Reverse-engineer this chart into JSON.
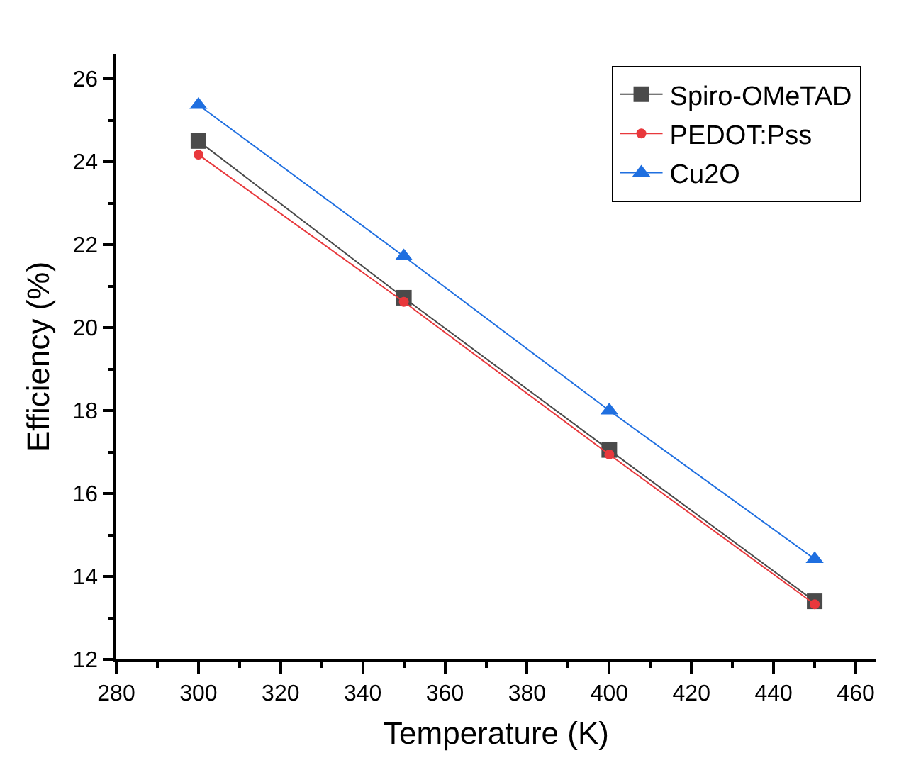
{
  "chart_data": {
    "type": "line",
    "xlabel": "Temperature (K)",
    "ylabel": "Efficiency (%)",
    "x": [
      300,
      350,
      400,
      450
    ],
    "series": [
      {
        "name": "Spiro-OMeTAD",
        "color": "#4a4a4a",
        "marker": "square",
        "values": [
          24.5,
          20.72,
          17.05,
          13.4
        ]
      },
      {
        "name": "PEDOT:Pss",
        "color": "#e8383c",
        "marker": "circle",
        "values": [
          24.17,
          20.62,
          16.94,
          13.33
        ]
      },
      {
        "name": "Cu2O",
        "color": "#1f6fe0",
        "marker": "triangle",
        "values": [
          25.37,
          21.72,
          18.0,
          14.42
        ]
      }
    ],
    "xlim": [
      280,
      465
    ],
    "xticks": [
      280,
      300,
      320,
      340,
      360,
      380,
      400,
      420,
      440,
      460
    ],
    "ylim": [
      12,
      26.6
    ],
    "yticks": [
      12,
      14,
      16,
      18,
      20,
      22,
      24,
      26
    ],
    "grid": false,
    "legend": "top right",
    "line_style": "solid"
  }
}
